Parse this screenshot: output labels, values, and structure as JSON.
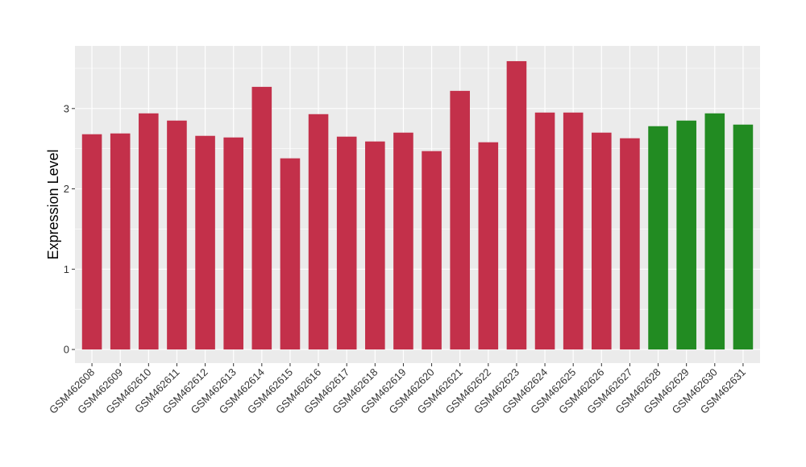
{
  "chart_data": {
    "type": "bar",
    "title": "",
    "xlabel": "",
    "ylabel": "Expression Level",
    "ylim": [
      -0.17,
      3.78
    ],
    "yticks": [
      0,
      1,
      2,
      3
    ],
    "grid": true,
    "legend": "none",
    "colors": {
      "red": "#C3304A",
      "green": "#228B22",
      "panel": "#EBEBEB",
      "gridline": "#FFFFFF"
    },
    "categories": [
      "GSM462608",
      "GSM462609",
      "GSM462610",
      "GSM462611",
      "GSM462612",
      "GSM462613",
      "GSM462614",
      "GSM462615",
      "GSM462616",
      "GSM462617",
      "GSM462618",
      "GSM462619",
      "GSM462620",
      "GSM462621",
      "GSM462622",
      "GSM462623",
      "GSM462624",
      "GSM462625",
      "GSM462626",
      "GSM462627",
      "GSM462628",
      "GSM462629",
      "GSM462630",
      "GSM462631"
    ],
    "values": [
      2.68,
      2.69,
      2.94,
      2.85,
      2.66,
      2.64,
      3.27,
      2.38,
      2.93,
      2.65,
      2.59,
      2.7,
      2.47,
      3.22,
      2.58,
      3.59,
      2.95,
      2.95,
      2.7,
      2.63,
      2.78,
      2.85,
      2.94,
      2.8
    ],
    "bar_colors": [
      "red",
      "red",
      "red",
      "red",
      "red",
      "red",
      "red",
      "red",
      "red",
      "red",
      "red",
      "red",
      "red",
      "red",
      "red",
      "red",
      "red",
      "red",
      "red",
      "red",
      "green",
      "green",
      "green",
      "green"
    ]
  }
}
